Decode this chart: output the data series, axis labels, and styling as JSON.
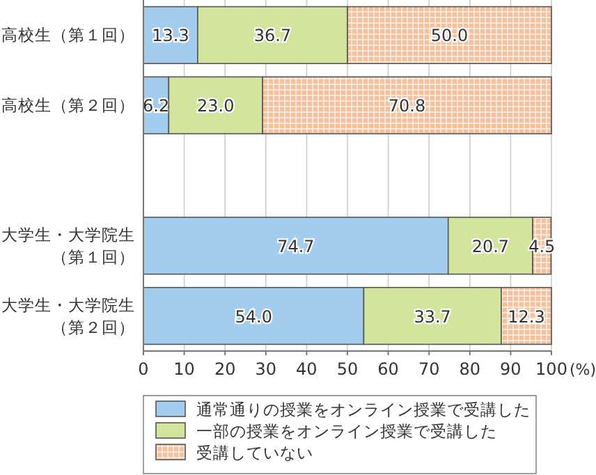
{
  "chart_data": {
    "type": "bar",
    "orientation": "horizontal",
    "stacked": true,
    "categories": [
      "高校生（第１回）",
      "高校生（第２回）",
      null,
      "大学生・大学院生（第１回）",
      "大学生・大学院生（第２回）"
    ],
    "series": [
      {
        "name": "通常通りの授業をオンライン授業で受講した",
        "color": "#a3cdee",
        "values": [
          13.3,
          6.2,
          null,
          74.7,
          54.0
        ],
        "value_labels": [
          "13.3",
          "6.2",
          null,
          "74.7",
          "54.0"
        ]
      },
      {
        "name": "一部の授業をオンライン授業で受講した",
        "color": "#d3e49c",
        "values": [
          36.7,
          23.0,
          null,
          20.7,
          33.7
        ],
        "value_labels": [
          "36.7",
          "23.0",
          null,
          "20.7",
          "33.7"
        ]
      },
      {
        "name": "受講していない",
        "color": "#f3c29d",
        "values": [
          50.0,
          70.8,
          null,
          4.5,
          12.3
        ],
        "value_labels": [
          "50.0",
          "70.8",
          null,
          "4.5",
          "12.3"
        ]
      }
    ],
    "xlabel": "(%)",
    "xlim": [
      0,
      100
    ],
    "xticks": [
      0,
      10,
      20,
      30,
      40,
      50,
      60,
      70,
      80,
      90,
      100
    ],
    "grid": "x",
    "legend": "bottom"
  }
}
